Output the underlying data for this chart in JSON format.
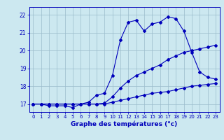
{
  "xlabel": "Graphe des températures (°c)",
  "x_ticks": [
    0,
    1,
    2,
    3,
    4,
    5,
    6,
    7,
    8,
    9,
    10,
    11,
    12,
    13,
    14,
    15,
    16,
    17,
    18,
    19,
    20,
    21,
    22,
    23
  ],
  "y_ticks": [
    17,
    18,
    19,
    20,
    21,
    22
  ],
  "ylim": [
    16.55,
    22.45
  ],
  "xlim": [
    -0.5,
    23.5
  ],
  "line_color": "#0000bb",
  "bg_color": "#cce8f0",
  "grid_color": "#9bbccc",
  "line1_y": [
    17.0,
    17.0,
    16.9,
    16.9,
    16.9,
    16.8,
    17.0,
    17.1,
    17.5,
    17.6,
    18.6,
    20.6,
    21.6,
    21.7,
    21.1,
    21.5,
    21.6,
    21.9,
    21.8,
    21.1,
    19.9,
    18.8,
    18.5,
    18.4
  ],
  "line2_y": [
    17.0,
    17.0,
    17.0,
    17.0,
    17.0,
    17.0,
    17.0,
    17.0,
    17.0,
    17.05,
    17.4,
    17.9,
    18.3,
    18.6,
    18.8,
    19.0,
    19.2,
    19.5,
    19.7,
    19.9,
    20.0,
    20.1,
    20.2,
    20.3
  ],
  "line3_y": [
    17.0,
    17.0,
    17.0,
    17.0,
    17.0,
    17.0,
    17.0,
    17.0,
    17.0,
    17.0,
    17.1,
    17.2,
    17.3,
    17.4,
    17.5,
    17.6,
    17.65,
    17.7,
    17.8,
    17.9,
    18.0,
    18.05,
    18.1,
    18.15
  ]
}
